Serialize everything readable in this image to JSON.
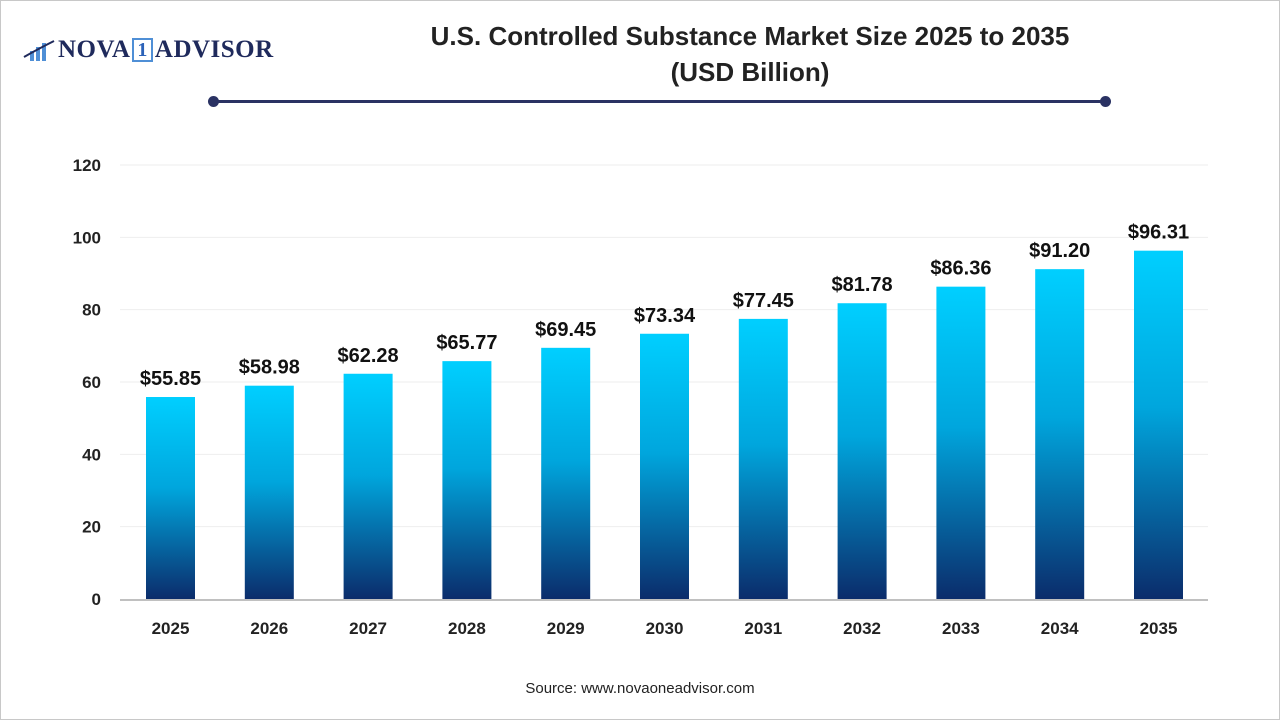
{
  "logo": {
    "text_left": "NOVA",
    "text_one": "1",
    "text_right": "ADVISOR"
  },
  "title_line1": "U.S. Controlled Substance Market Size 2025 to 2035",
  "title_line2": "(USD Billion)",
  "source": "Source: www.novaoneadvisor.com",
  "colors": {
    "bar_top": "#00CFFF",
    "bar_bottom": "#0B2C6B",
    "title_rule": "#2a3263"
  },
  "chart_data": {
    "type": "bar",
    "title": "U.S. Controlled Substance Market Size 2025 to 2035 (USD Billion)",
    "xlabel": "",
    "ylabel": "",
    "categories": [
      "2025",
      "2026",
      "2027",
      "2028",
      "2029",
      "2030",
      "2031",
      "2032",
      "2033",
      "2034",
      "2035"
    ],
    "values": [
      55.85,
      58.98,
      62.28,
      65.77,
      69.45,
      73.34,
      77.45,
      81.78,
      86.36,
      91.2,
      96.31
    ],
    "data_labels": [
      "$55.85",
      "$58.98",
      "$62.28",
      "$65.77",
      "$69.45",
      "$73.34",
      "$77.45",
      "$81.78",
      "$86.36",
      "$91.20",
      "$96.31"
    ],
    "ylim": [
      0,
      120
    ],
    "yticks": [
      0,
      20,
      40,
      60,
      80,
      100,
      120
    ],
    "grid": true,
    "legend": "none"
  }
}
